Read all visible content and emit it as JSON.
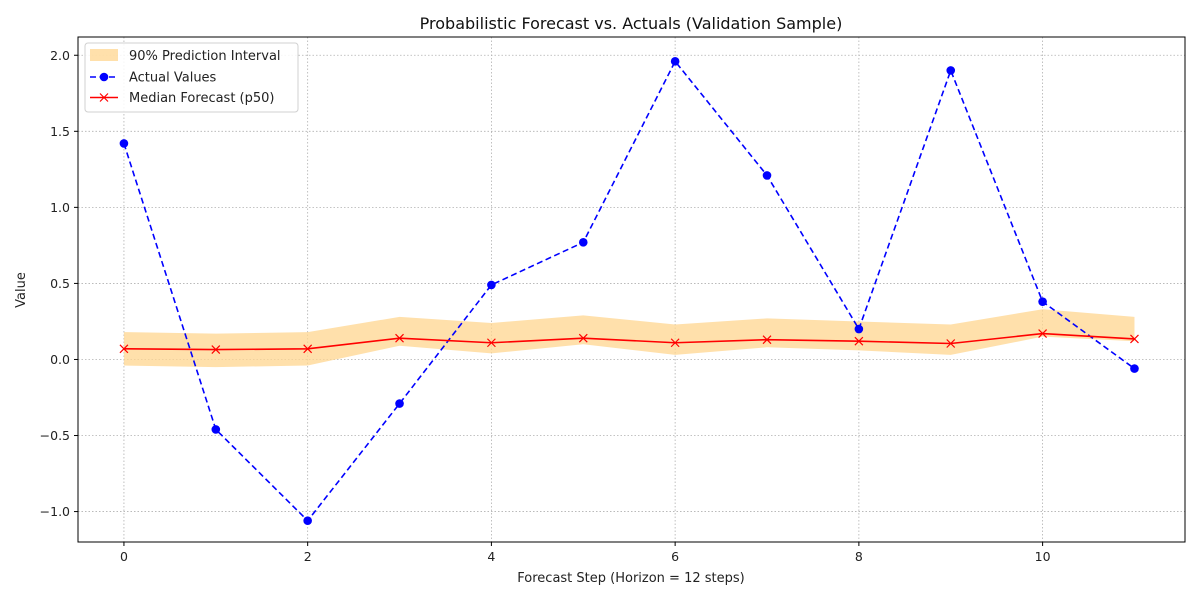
{
  "chart_data": {
    "type": "line",
    "title": "Probabilistic Forecast vs. Actuals (Validation Sample)",
    "xlabel": "Forecast Step (Horizon = 12 steps)",
    "ylabel": "Value",
    "x": [
      0,
      1,
      2,
      3,
      4,
      5,
      6,
      7,
      8,
      9,
      10,
      11
    ],
    "xlim": [
      -0.5,
      11.55
    ],
    "ylim": [
      -1.2,
      2.12
    ],
    "xticks": [
      0,
      2,
      4,
      6,
      8,
      10
    ],
    "xtick_labels": [
      "0",
      "2",
      "4",
      "6",
      "8",
      "10"
    ],
    "yticks": [
      -1.0,
      -0.5,
      0.0,
      0.5,
      1.0,
      1.5,
      2.0
    ],
    "ytick_labels": [
      "−1.0",
      "−0.5",
      "0.0",
      "0.5",
      "1.0",
      "1.5",
      "2.0"
    ],
    "grid": true,
    "legend_position": "top-left",
    "interval": {
      "name": "90% Prediction Interval",
      "color": "#ffd58f",
      "lower": [
        -0.04,
        -0.05,
        -0.04,
        0.09,
        0.04,
        0.1,
        0.03,
        0.08,
        0.06,
        0.03,
        0.15,
        0.12
      ],
      "upper": [
        0.18,
        0.17,
        0.18,
        0.28,
        0.24,
        0.29,
        0.23,
        0.27,
        0.25,
        0.23,
        0.33,
        0.28
      ]
    },
    "series": [
      {
        "name": "Actual Values",
        "color": "#0000ff",
        "style": "dashed",
        "marker": "circle",
        "values": [
          1.42,
          -0.46,
          -1.06,
          -0.29,
          0.49,
          0.77,
          1.96,
          1.21,
          0.2,
          1.9,
          0.38,
          -0.06
        ]
      },
      {
        "name": "Median Forecast (p50)",
        "color": "#ff0000",
        "style": "solid",
        "marker": "x",
        "values": [
          0.07,
          0.065,
          0.07,
          0.14,
          0.11,
          0.14,
          0.11,
          0.13,
          0.12,
          0.105,
          0.17,
          0.135
        ]
      }
    ]
  }
}
